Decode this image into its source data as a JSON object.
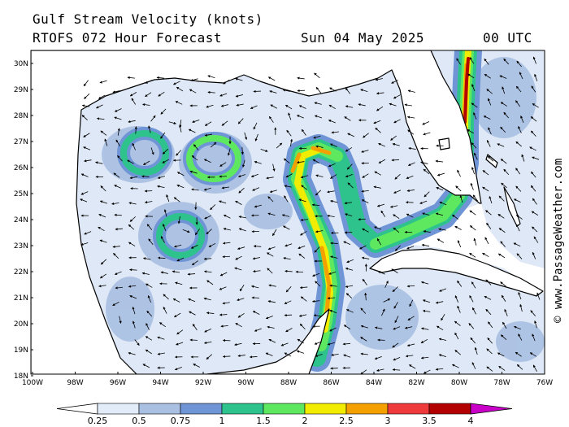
{
  "header": {
    "title": "Gulf Stream Velocity (knots)",
    "forecast": "RTOFS 072 Hour Forecast",
    "date": "Sun 04 May 2025",
    "time": "00 UTC"
  },
  "map": {
    "lon_range": [
      -100,
      -76
    ],
    "lat_range": [
      18,
      30.5
    ],
    "lat_labels": [
      "30N",
      "29N",
      "28N",
      "27N",
      "26N",
      "25N",
      "24N",
      "23N",
      "22N",
      "21N",
      "20N",
      "19N",
      "18N"
    ],
    "lon_labels": [
      "100W",
      "98W",
      "96W",
      "94W",
      "92W",
      "90W",
      "88W",
      "86W",
      "84W",
      "82W",
      "80W",
      "78W",
      "76W"
    ]
  },
  "colorbar": {
    "ticks": [
      "0.25",
      "0.5",
      "0.75",
      "1",
      "1.5",
      "2",
      "2.5",
      "3",
      "3.5",
      "4"
    ],
    "colors": [
      "#e2ebf8",
      "#a9c0e3",
      "#6f95d6",
      "#2ec28c",
      "#5ee860",
      "#f2ec00",
      "#f4a100",
      "#ee3a3a",
      "#b30000",
      "#c800c8"
    ]
  },
  "credit": "© www.PassageWeather.com"
}
